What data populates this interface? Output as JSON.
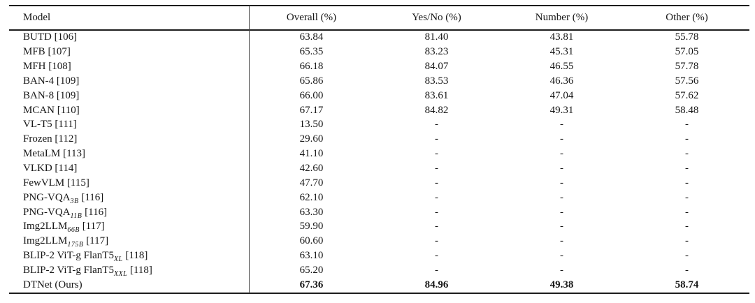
{
  "table": {
    "columns": [
      {
        "label": "Model"
      },
      {
        "label": "Overall (%)"
      },
      {
        "label": "Yes/No (%)"
      },
      {
        "label": "Number (%)"
      },
      {
        "label": "Other (%)"
      }
    ],
    "rows": [
      {
        "model_main": "BUTD",
        "model_sub": "",
        "model_suffix": " [106]",
        "values": [
          "63.84",
          "81.40",
          "43.81",
          "55.78"
        ],
        "bold_values": false
      },
      {
        "model_main": "MFB",
        "model_sub": "",
        "model_suffix": " [107]",
        "values": [
          "65.35",
          "83.23",
          "45.31",
          "57.05"
        ],
        "bold_values": false
      },
      {
        "model_main": "MFH",
        "model_sub": "",
        "model_suffix": " [108]",
        "values": [
          "66.18",
          "84.07",
          "46.55",
          "57.78"
        ],
        "bold_values": false
      },
      {
        "model_main": "BAN-4",
        "model_sub": "",
        "model_suffix": " [109]",
        "values": [
          "65.86",
          "83.53",
          "46.36",
          "57.56"
        ],
        "bold_values": false
      },
      {
        "model_main": "BAN-8",
        "model_sub": "",
        "model_suffix": " [109]",
        "values": [
          "66.00",
          "83.61",
          "47.04",
          "57.62"
        ],
        "bold_values": false
      },
      {
        "model_main": "MCAN",
        "model_sub": "",
        "model_suffix": " [110]",
        "values": [
          "67.17",
          "84.82",
          "49.31",
          "58.48"
        ],
        "bold_values": false
      },
      {
        "model_main": "VL-T5",
        "model_sub": "",
        "model_suffix": " [111]",
        "values": [
          "13.50",
          "-",
          "-",
          "-"
        ],
        "bold_values": false
      },
      {
        "model_main": "Frozen",
        "model_sub": "",
        "model_suffix": " [112]",
        "values": [
          "29.60",
          "-",
          "-",
          "-"
        ],
        "bold_values": false
      },
      {
        "model_main": "MetaLM",
        "model_sub": "",
        "model_suffix": " [113]",
        "values": [
          "41.10",
          "-",
          "-",
          "-"
        ],
        "bold_values": false
      },
      {
        "model_main": "VLKD",
        "model_sub": "",
        "model_suffix": " [114]",
        "values": [
          "42.60",
          "-",
          "-",
          "-"
        ],
        "bold_values": false
      },
      {
        "model_main": "FewVLM",
        "model_sub": "",
        "model_suffix": " [115]",
        "values": [
          "47.70",
          "-",
          "-",
          "-"
        ],
        "bold_values": false
      },
      {
        "model_main": "PNG-VQA",
        "model_sub": "3B",
        "model_suffix": " [116]",
        "values": [
          "62.10",
          "-",
          "-",
          "-"
        ],
        "bold_values": false
      },
      {
        "model_main": "PNG-VQA",
        "model_sub": "11B",
        "model_suffix": " [116]",
        "values": [
          "63.30",
          "-",
          "-",
          "-"
        ],
        "bold_values": false
      },
      {
        "model_main": "Img2LLM",
        "model_sub": "66B",
        "model_suffix": " [117]",
        "values": [
          "59.90",
          "-",
          "-",
          "-"
        ],
        "bold_values": false
      },
      {
        "model_main": "Img2LLM",
        "model_sub": "175B",
        "model_suffix": " [117]",
        "values": [
          "60.60",
          "-",
          "-",
          "-"
        ],
        "bold_values": false
      },
      {
        "model_main": "BLIP-2 ViT-g FlanT5",
        "model_sub": "XL",
        "model_suffix": " [118]",
        "values": [
          "63.10",
          "-",
          "-",
          "-"
        ],
        "bold_values": false
      },
      {
        "model_main": "BLIP-2 ViT-g FlanT5",
        "model_sub": "XXL",
        "model_suffix": " [118]",
        "values": [
          "65.20",
          "-",
          "-",
          "-"
        ],
        "bold_values": false
      },
      {
        "model_main": "DTNet (Ours)",
        "model_sub": "",
        "model_suffix": "",
        "values": [
          "67.36",
          "84.96",
          "49.38",
          "58.74"
        ],
        "bold_values": true
      }
    ],
    "colors": {
      "rule": "#1c1c1c",
      "divider": "#454545",
      "text": "#161616",
      "background": "#ffffff"
    }
  }
}
